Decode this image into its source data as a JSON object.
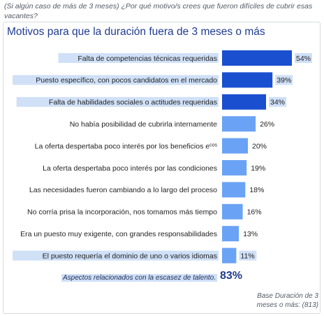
{
  "question": "(Si algún caso de más de 3 meses) ¿Por qué motivo/s crees que fueron difíciles de cubrir esas vacantes?",
  "chart_data": {
    "type": "bar",
    "orientation": "horizontal",
    "title": "Motivos para que la duración fuera de 3 meses o más",
    "categories": [
      "Falta de competencias técnicas requeridas",
      "Puesto específico, con pocos candidatos en el mercado",
      "Falta de habilidades sociales o actitudes requeridas",
      "No había posibilidad de cubrirla internamente",
      "La oferta despertaba poco interés por los beneficios e",
      "La oferta despertaba poco interés por las condiciones",
      "Las necesidades fueron cambiando a lo largo del proceso",
      "No corría prisa la incorporación, nos tomamos más tiempo",
      "Era un puesto muy exigente, con grandes responsabilidades",
      "El puesto requería el dominio de uno o varios idiomas"
    ],
    "values": [
      54,
      39,
      34,
      26,
      20,
      19,
      18,
      16,
      13,
      11
    ],
    "value_labels": [
      "54%",
      "39%",
      "34%",
      "26%",
      "20%",
      "19%",
      "18%",
      "16%",
      "13%",
      "11%"
    ],
    "superscripts": [
      "",
      "",
      "",
      "",
      "cos",
      "",
      "",
      "",
      "",
      ""
    ],
    "highlighted": [
      true,
      true,
      true,
      false,
      false,
      false,
      false,
      false,
      false,
      true
    ],
    "dark_bars": [
      true,
      true,
      true,
      false,
      false,
      false,
      false,
      false,
      false,
      false
    ],
    "colors": {
      "dark": "#1a4fd0",
      "light": "#6aa3f5",
      "highlight": "#cfe0f7",
      "text": "#222222"
    }
  },
  "footer": {
    "talent_label": "Aspectos relacionados con la escasez de talento.",
    "talent_value": "83%",
    "base_note": "Base Duración de 3 meses o más: (813)"
  }
}
